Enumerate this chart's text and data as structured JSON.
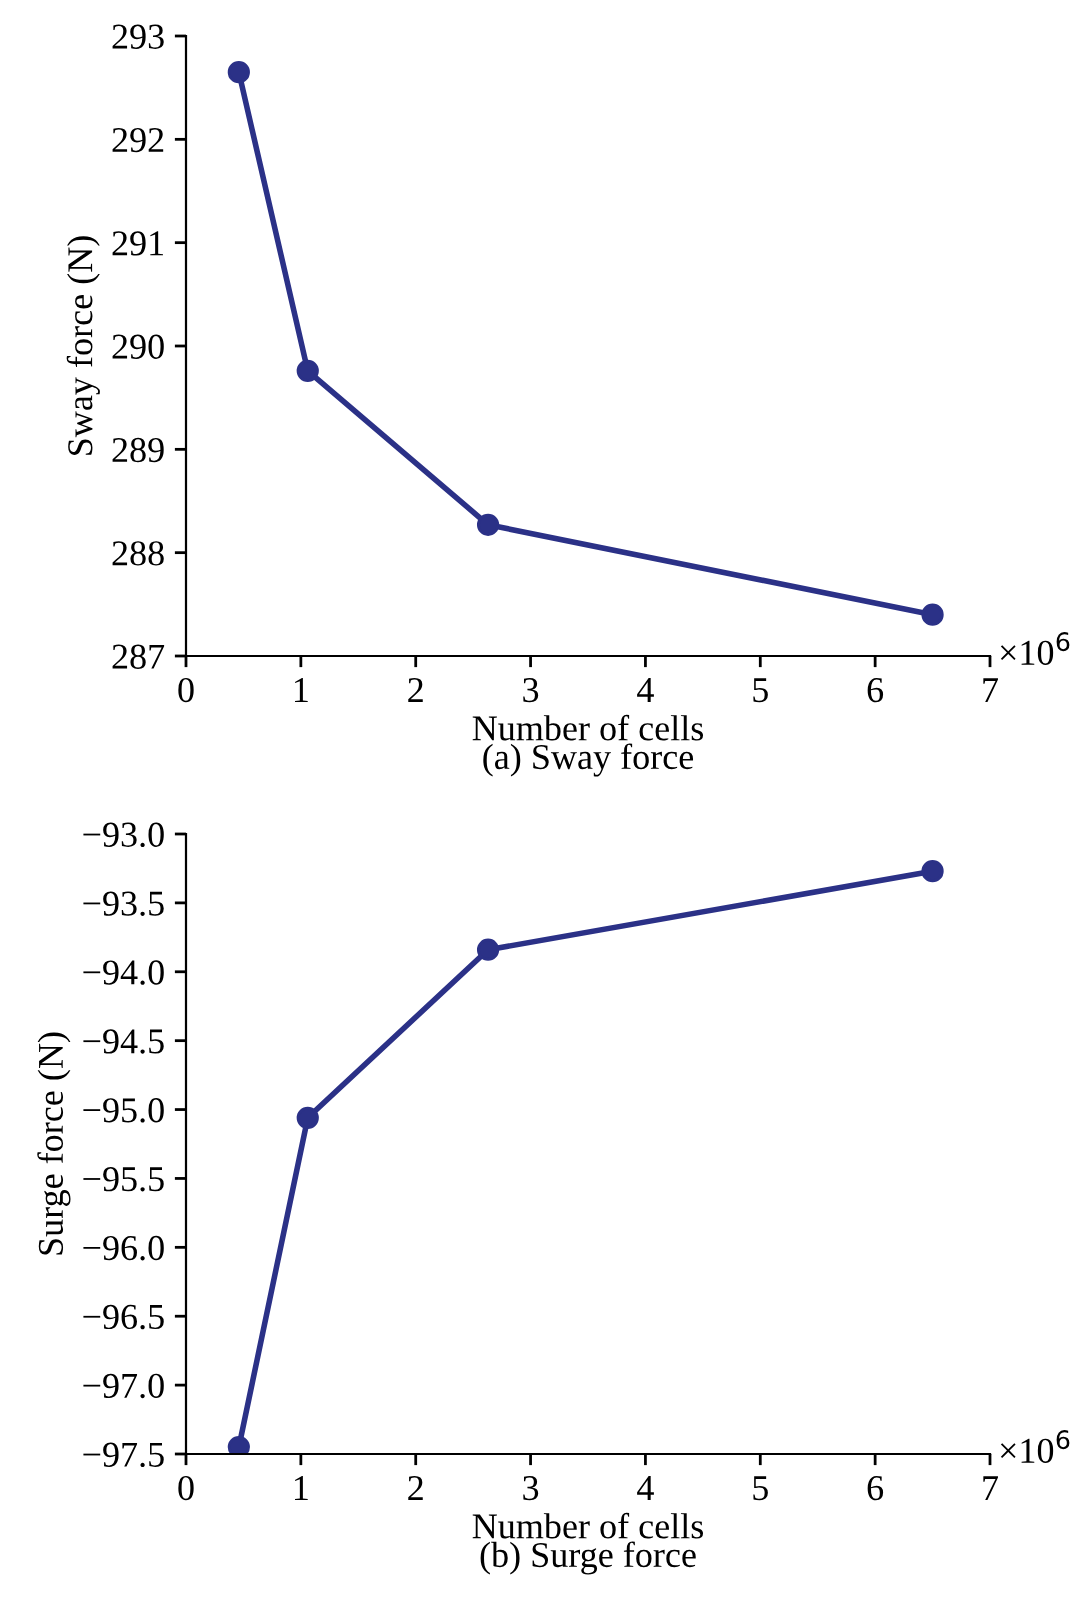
{
  "chart_data": [
    {
      "type": "line",
      "title": "(a) Sway force",
      "xlabel": "Number of cells",
      "ylabel": "Sway force (N)",
      "annotations": [
        "×10$^{6}$"
      ],
      "x": [
        0.46,
        1.06,
        2.63,
        6.5
      ],
      "series": [
        {
          "color": "#2b3187",
          "values": [
            292.65,
            289.76,
            288.27,
            287.4
          ]
        }
      ],
      "xlim": [
        0,
        7
      ],
      "xticks": [
        0,
        1,
        2,
        3,
        4,
        5,
        6,
        7
      ],
      "ylim": [
        287,
        293
      ],
      "yticks": [
        287,
        288,
        289,
        290,
        291,
        292,
        293
      ],
      "grid": false,
      "legend": false,
      "marker": "circle",
      "line_style": "solid"
    },
    {
      "type": "line",
      "title": "(b) Surge force",
      "xlabel": "Number of cells",
      "ylabel": "Surge force (N)",
      "annotations": [
        "×10$^{6}$"
      ],
      "x": [
        0.46,
        1.06,
        2.63,
        6.5
      ],
      "series": [
        {
          "color": "#2b3187",
          "values": [
            -97.45,
            -95.06,
            -93.84,
            -93.27
          ]
        }
      ],
      "xlim": [
        0,
        7
      ],
      "xticks": [
        0,
        1,
        2,
        3,
        4,
        5,
        6,
        7
      ],
      "ylim": [
        -97.5,
        -93.0
      ],
      "yticks": [
        {
          "value": -97.5,
          "label": "−97.5"
        },
        {
          "value": -97.0,
          "label": "−97.0"
        },
        {
          "value": -96.5,
          "label": "−96.5"
        },
        {
          "value": -96.0,
          "label": "−96.0"
        },
        {
          "value": -95.5,
          "label": "−95.5"
        },
        {
          "value": -95.0,
          "label": "−95.0"
        },
        {
          "value": -94.5,
          "label": "−94.5"
        },
        {
          "value": -94.0,
          "label": "−94.0"
        },
        {
          "value": -93.5,
          "label": "−93.5"
        },
        {
          "value": -93.0,
          "label": "−93.0"
        }
      ],
      "grid": false,
      "legend": false,
      "marker": "circle",
      "line_style": "solid"
    }
  ]
}
